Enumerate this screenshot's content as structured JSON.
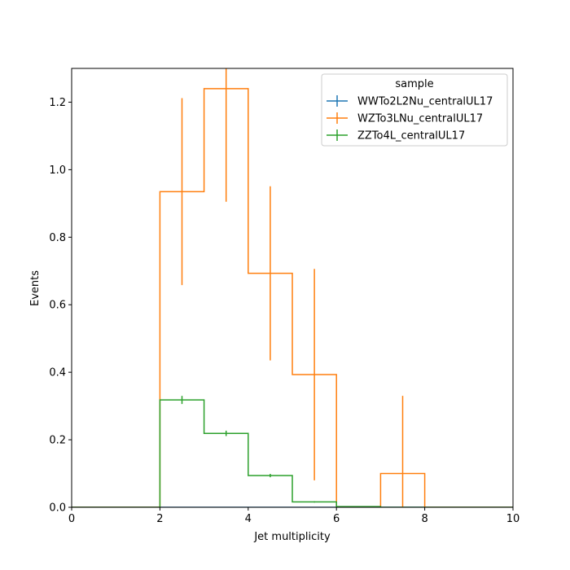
{
  "chart_data": {
    "type": "histogram-step",
    "xlabel": "Jet multiplicity",
    "ylabel": "Events",
    "xlim": [
      0,
      10
    ],
    "ylim": [
      0,
      1.3
    ],
    "xticks": [
      0,
      2,
      4,
      6,
      8,
      10
    ],
    "yticks": [
      0.0,
      0.2,
      0.4,
      0.6,
      0.8,
      1.0,
      1.2
    ],
    "grid": false,
    "bin_edges": [
      0,
      1,
      2,
      3,
      4,
      5,
      6,
      7,
      8,
      9,
      10
    ],
    "legend": {
      "title": "sample",
      "placement": "top-right"
    },
    "series": [
      {
        "name": "WWTo2L2Nu_centralUL17",
        "color": "#1f77b4",
        "values": [
          0,
          0,
          0,
          0,
          0,
          0,
          0,
          0,
          0,
          0
        ],
        "errors": [
          0,
          0,
          0,
          0,
          0,
          0,
          0,
          0,
          0,
          0
        ]
      },
      {
        "name": "WZTo3LNu_centralUL17",
        "color": "#ff7f0e",
        "values": [
          0,
          0,
          0.935,
          1.24,
          0.693,
          0.393,
          0,
          0.1,
          0,
          0
        ],
        "errors": [
          0,
          0,
          0.277,
          0.335,
          0.258,
          0.313,
          0,
          0.23,
          0,
          0
        ]
      },
      {
        "name": "ZZTo4L_centralUL17",
        "color": "#2ca02c",
        "values": [
          0,
          0,
          0.318,
          0.219,
          0.094,
          0.016,
          0.002,
          0,
          0,
          0
        ],
        "errors": [
          0,
          0,
          0.012,
          0.008,
          0.005,
          0.002,
          0.001,
          0,
          0,
          0
        ]
      }
    ]
  }
}
